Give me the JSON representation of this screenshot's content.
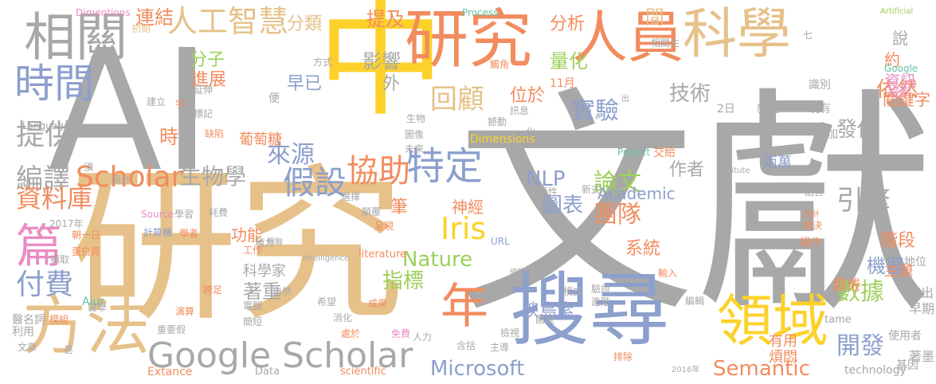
{
  "palette": {
    "gray": "#a8a8a8",
    "tan": "#e6c189",
    "yellow": "#fcd12a",
    "blue": "#8c9fcd",
    "orange": "#f28c5e",
    "green": "#9dd05b",
    "pink": "#ea8cc4",
    "teal": "#68c2a8"
  },
  "words": [
    {
      "t": "文獻",
      "c": "gray"
    },
    {
      "t": "研究",
      "c": "tan"
    },
    {
      "t": "AI",
      "c": "gray"
    },
    {
      "t": "中",
      "c": "yellow"
    },
    {
      "t": "搜尋",
      "c": "blue"
    },
    {
      "t": "研究",
      "c": "orange"
    },
    {
      "t": "人員",
      "c": "orange"
    },
    {
      "t": "科學",
      "c": "tan"
    },
    {
      "t": "相關",
      "c": "gray"
    },
    {
      "t": "Google Scholar",
      "c": "gray"
    },
    {
      "t": "領域",
      "c": "yellow"
    },
    {
      "t": "方法",
      "c": "tan"
    },
    {
      "t": "年",
      "c": "orange"
    },
    {
      "t": "時間",
      "c": "blue"
    },
    {
      "t": "篇",
      "c": "pink"
    },
    {
      "t": "人工智慧",
      "c": "tan"
    },
    {
      "t": "特定",
      "c": "blue"
    },
    {
      "t": "Scholar",
      "c": "orange"
    },
    {
      "t": "協助",
      "c": "orange"
    },
    {
      "t": "假設",
      "c": "blue"
    },
    {
      "t": "回顧",
      "c": "tan"
    },
    {
      "t": "Iris",
      "c": "yellow"
    },
    {
      "t": "提供",
      "c": "gray"
    },
    {
      "t": "編譯",
      "c": "gray"
    },
    {
      "t": "資料庫",
      "c": "orange"
    },
    {
      "t": "付費",
      "c": "blue"
    },
    {
      "t": "實驗",
      "c": "blue"
    },
    {
      "t": "論文",
      "c": "green"
    },
    {
      "t": "團隊",
      "c": "orange"
    },
    {
      "t": "數據",
      "c": "green"
    },
    {
      "t": "開發",
      "c": "blue"
    },
    {
      "t": "引擎",
      "c": "gray"
    },
    {
      "t": "依然",
      "c": "orange"
    },
    {
      "t": "Microsoft",
      "c": "blue"
    },
    {
      "t": "Semantic",
      "c": "orange"
    },
    {
      "t": "NLP",
      "c": "blue"
    },
    {
      "t": "Nature",
      "c": "green"
    },
    {
      "t": "指標",
      "c": "green"
    },
    {
      "t": "生物學",
      "c": "gray"
    },
    {
      "t": "來源",
      "c": "blue"
    },
    {
      "t": "時",
      "c": "orange"
    },
    {
      "t": "分子",
      "c": "green"
    },
    {
      "t": "進展",
      "c": "orange"
    },
    {
      "t": "連結",
      "c": "orange"
    },
    {
      "t": "分類",
      "c": "tan"
    },
    {
      "t": "提及",
      "c": "orange"
    },
    {
      "t": "分析",
      "c": "orange"
    },
    {
      "t": "間",
      "c": "tan"
    },
    {
      "t": "說",
      "c": "gray"
    },
    {
      "t": "約",
      "c": "orange"
    },
    {
      "t": "資訊",
      "c": "pink"
    },
    {
      "t": "量化",
      "c": "green"
    },
    {
      "t": "影響",
      "c": "gray"
    },
    {
      "t": "外",
      "c": "gray"
    },
    {
      "t": "早已",
      "c": "blue"
    },
    {
      "t": "位於",
      "c": "orange"
    },
    {
      "t": "技術",
      "c": "gray"
    },
    {
      "t": "作者",
      "c": "gray"
    },
    {
      "t": "發佈",
      "c": "gray"
    },
    {
      "t": "德國",
      "c": "gray"
    },
    {
      "t": "兩萬",
      "c": "blue"
    },
    {
      "t": "圖表",
      "c": "blue"
    },
    {
      "t": "Academic",
      "c": "blue"
    },
    {
      "t": "神經",
      "c": "orange"
    },
    {
      "t": "階段",
      "c": "orange"
    },
    {
      "t": "機器",
      "c": "blue"
    },
    {
      "t": "系統",
      "c": "orange"
    },
    {
      "t": "腴島素",
      "c": "blue"
    },
    {
      "t": "著重",
      "c": "gray"
    },
    {
      "t": "科學家",
      "c": "gray"
    },
    {
      "t": "功能",
      "c": "orange"
    },
    {
      "t": "葡萄糖",
      "c": "orange"
    },
    {
      "t": "筆",
      "c": "orange"
    },
    {
      "t": "關鍵字",
      "c": "orange"
    },
    {
      "t": "主題",
      "c": "orange"
    },
    {
      "t": "厭倦",
      "c": "orange"
    },
    {
      "t": "有用",
      "c": "orange"
    },
    {
      "t": "煩悶",
      "c": "orange"
    },
    {
      "t": "指出",
      "c": "gray"
    },
    {
      "t": "早期",
      "c": "gray"
    },
    {
      "t": "著墨",
      "c": "gray"
    },
    {
      "t": "地位",
      "c": "gray"
    },
    {
      "t": "使用者",
      "c": "gray"
    },
    {
      "t": "基因",
      "c": "gray"
    },
    {
      "t": "technology",
      "c": "gray"
    },
    {
      "t": "Extance",
      "c": "orange"
    },
    {
      "t": "Data",
      "c": "gray"
    },
    {
      "t": "scientific",
      "c": "orange"
    },
    {
      "t": "Dimentions",
      "c": "pink"
    },
    {
      "t": "Dimensions",
      "c": "yellow"
    },
    {
      "t": "Process",
      "c": "teal"
    },
    {
      "t": "Artificial",
      "c": "green"
    },
    {
      "t": "Google",
      "c": "teal"
    },
    {
      "t": "檢索",
      "c": "pink"
    },
    {
      "t": "Language",
      "c": "gray"
    },
    {
      "t": "Source",
      "c": "pink"
    },
    {
      "t": "Aiur",
      "c": "teal"
    },
    {
      "t": "Project",
      "c": "teal"
    },
    {
      "t": "交給",
      "c": "orange"
    },
    {
      "t": "新式",
      "c": "gray"
    },
    {
      "t": "URL",
      "c": "blue"
    },
    {
      "t": "literature",
      "c": "orange"
    },
    {
      "t": "Intelligence",
      "c": "gray"
    },
    {
      "t": "tame",
      "c": "gray"
    },
    {
      "t": "2017年",
      "c": "gray"
    },
    {
      "t": "11月",
      "c": "orange"
    },
    {
      "t": "2016年",
      "c": "gray"
    },
    {
      "t": "2日",
      "c": "gray"
    },
    {
      "t": "初期",
      "c": "tan"
    },
    {
      "t": "方式",
      "c": "gray"
    },
    {
      "t": "觸角",
      "c": "orange"
    },
    {
      "t": "建立",
      "c": "gray"
    },
    {
      "t": "延伸",
      "c": "gray"
    },
    {
      "t": "標記",
      "c": "gray"
    },
    {
      "t": "缺陷",
      "c": "orange"
    },
    {
      "t": "便",
      "c": "gray"
    },
    {
      "t": "敘述",
      "c": "gray"
    },
    {
      "t": "識別",
      "c": "gray"
    },
    {
      "t": "現有",
      "c": "gray"
    },
    {
      "t": "加",
      "c": "gray"
    },
    {
      "t": "醫學",
      "c": "gray"
    },
    {
      "t": "醫名詞",
      "c": "gray"
    },
    {
      "t": "模組",
      "c": "orange"
    },
    {
      "t": "利用",
      "c": "gray"
    },
    {
      "t": "文章",
      "c": "gray"
    },
    {
      "t": "甚",
      "c": "gray"
    },
    {
      "t": "跨足",
      "c": "orange"
    },
    {
      "t": "演算",
      "c": "orange"
    },
    {
      "t": "電腦",
      "c": "gray"
    },
    {
      "t": "簡短",
      "c": "gray"
    },
    {
      "t": "自然",
      "c": "gray"
    },
    {
      "t": "消化",
      "c": "gray"
    },
    {
      "t": "希望",
      "c": "gray"
    },
    {
      "t": "處於",
      "c": "orange"
    },
    {
      "t": "成果",
      "c": "orange"
    },
    {
      "t": "免費",
      "c": "pink"
    },
    {
      "t": "人力",
      "c": "gray"
    },
    {
      "t": "含括",
      "c": "gray"
    },
    {
      "t": "主導",
      "c": "gray"
    },
    {
      "t": "排除",
      "c": "orange"
    },
    {
      "t": "檢視",
      "c": "gray"
    },
    {
      "t": "圖說",
      "c": "gray"
    },
    {
      "t": "模式",
      "c": "gray"
    },
    {
      "t": "編輯",
      "c": "gray"
    },
    {
      "t": "輸入",
      "c": "orange"
    },
    {
      "t": "驗證",
      "c": "gray"
    },
    {
      "t": "進階",
      "c": "gray"
    },
    {
      "t": "操作",
      "c": "orange"
    },
    {
      "t": "語言",
      "c": "gray"
    },
    {
      "t": "解決",
      "c": "orange"
    },
    {
      "t": "設計",
      "c": "orange"
    },
    {
      "t": "重要性",
      "c": "gray"
    },
    {
      "t": "呈現",
      "c": "orange"
    },
    {
      "t": "選擇",
      "c": "gray"
    },
    {
      "t": "縮短",
      "c": "gray"
    },
    {
      "t": "顛覆",
      "c": "gray"
    },
    {
      "t": "耗費",
      "c": "gray"
    },
    {
      "t": "積力",
      "c": "gray"
    },
    {
      "t": "學習",
      "c": "gray"
    },
    {
      "t": "學者",
      "c": "orange"
    },
    {
      "t": "計算機",
      "c": "blue"
    },
    {
      "t": "工作",
      "c": "orange"
    },
    {
      "t": "關聯",
      "c": "gray"
    },
    {
      "t": "朝一日",
      "c": "orange"
    },
    {
      "t": "蛋白質",
      "c": "orange"
    },
    {
      "t": "擷取",
      "c": "gray"
    },
    {
      "t": "重要假",
      "c": "gray"
    },
    {
      "t": "預計",
      "c": "gray"
    },
    {
      "t": "須",
      "c": "gray"
    },
    {
      "t": "生物",
      "c": "gray"
    },
    {
      "t": "圖像",
      "c": "gray"
    },
    {
      "t": "未來",
      "c": "gray"
    },
    {
      "t": "化",
      "c": "gray"
    },
    {
      "t": "Institute",
      "c": "gray"
    },
    {
      "t": "出",
      "c": "gray"
    },
    {
      "t": "訊息",
      "c": "gray"
    },
    {
      "t": "撼動",
      "c": "gray"
    },
    {
      "t": "七",
      "c": "gray"
    },
    {
      "t": "相關生",
      "c": "gray"
    },
    {
      "t": "宇",
      "c": "orange"
    }
  ]
}
